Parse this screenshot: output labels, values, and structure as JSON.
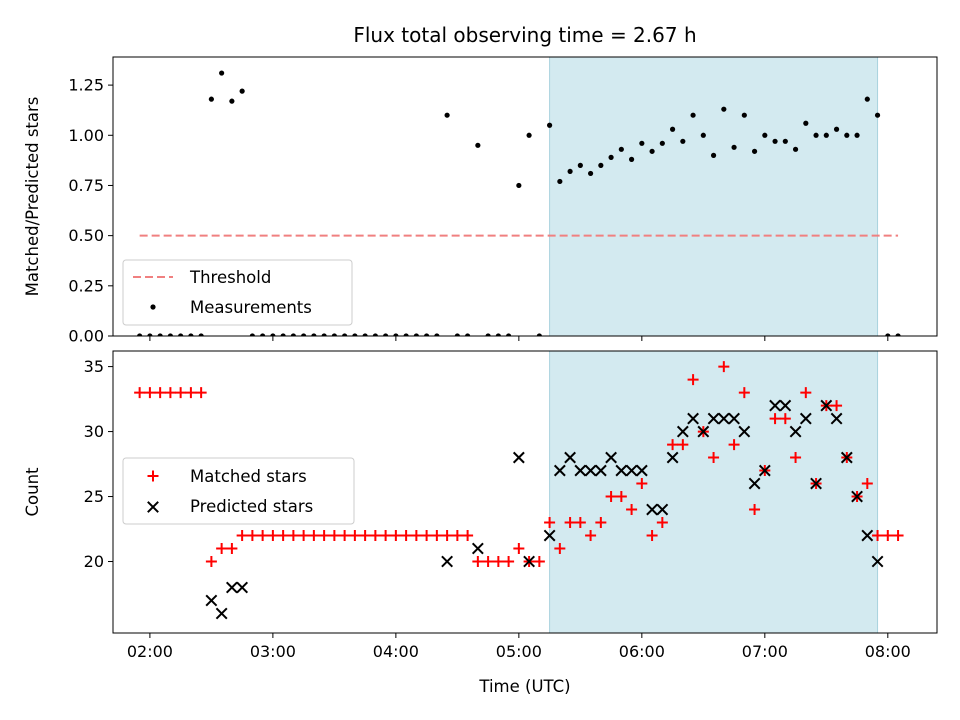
{
  "chart_data": [
    {
      "type": "scatter",
      "title": "Flux total observing time = 2.67 h",
      "ylabel": "Matched/Predicted stars",
      "xlabel": "",
      "xlim": [
        "01:42",
        "08:24"
      ],
      "ylim": [
        0,
        1.39
      ],
      "yticks": [
        0,
        0.25,
        0.5,
        0.75,
        1.0,
        1.25
      ],
      "ytick_labels": [
        "0.00",
        "0.25",
        "0.50",
        "0.75",
        "1.00",
        "1.25"
      ],
      "shaded_span": {
        "start": "05:15",
        "end": "07:55",
        "color": "#d3eaf0"
      },
      "threshold": {
        "name": "Threshold",
        "value": 0.5,
        "start": "01:55",
        "end": "08:05",
        "color": "#f08080"
      },
      "legend": {
        "position": "lower-left",
        "entries": [
          "Threshold",
          "Measurements"
        ]
      },
      "series": [
        {
          "name": "Measurements",
          "marker": "dot",
          "color": "#000000",
          "points": [
            [
              "01:55",
              0
            ],
            [
              "02:00",
              0
            ],
            [
              "02:05",
              0
            ],
            [
              "02:10",
              0
            ],
            [
              "02:15",
              0
            ],
            [
              "02:20",
              0
            ],
            [
              "02:25",
              0
            ],
            [
              "02:30",
              1.18
            ],
            [
              "02:35",
              1.31
            ],
            [
              "02:40",
              1.17
            ],
            [
              "02:45",
              1.22
            ],
            [
              "02:50",
              0
            ],
            [
              "02:55",
              0
            ],
            [
              "03:00",
              0
            ],
            [
              "03:05",
              0
            ],
            [
              "03:10",
              0
            ],
            [
              "03:15",
              0
            ],
            [
              "03:20",
              0
            ],
            [
              "03:25",
              0
            ],
            [
              "03:30",
              0
            ],
            [
              "03:35",
              0
            ],
            [
              "03:40",
              0
            ],
            [
              "03:45",
              0
            ],
            [
              "03:50",
              0
            ],
            [
              "03:55",
              0
            ],
            [
              "04:00",
              0
            ],
            [
              "04:05",
              0
            ],
            [
              "04:10",
              0
            ],
            [
              "04:15",
              0
            ],
            [
              "04:20",
              0
            ],
            [
              "04:25",
              1.1
            ],
            [
              "04:30",
              0
            ],
            [
              "04:35",
              0
            ],
            [
              "04:40",
              0.95
            ],
            [
              "04:45",
              0
            ],
            [
              "04:50",
              0
            ],
            [
              "04:55",
              0
            ],
            [
              "05:00",
              0.75
            ],
            [
              "05:05",
              1.0
            ],
            [
              "05:10",
              0
            ],
            [
              "05:15",
              1.05
            ],
            [
              "05:20",
              0.77
            ],
            [
              "05:25",
              0.82
            ],
            [
              "05:30",
              0.85
            ],
            [
              "05:35",
              0.81
            ],
            [
              "05:40",
              0.85
            ],
            [
              "05:45",
              0.89
            ],
            [
              "05:50",
              0.93
            ],
            [
              "05:55",
              0.88
            ],
            [
              "06:00",
              0.96
            ],
            [
              "06:05",
              0.92
            ],
            [
              "06:10",
              0.96
            ],
            [
              "06:15",
              1.03
            ],
            [
              "06:20",
              0.97
            ],
            [
              "06:25",
              1.1
            ],
            [
              "06:30",
              1.0
            ],
            [
              "06:35",
              0.9
            ],
            [
              "06:40",
              1.13
            ],
            [
              "06:45",
              0.94
            ],
            [
              "06:50",
              1.1
            ],
            [
              "06:55",
              0.92
            ],
            [
              "07:00",
              1.0
            ],
            [
              "07:05",
              0.97
            ],
            [
              "07:10",
              0.97
            ],
            [
              "07:15",
              0.93
            ],
            [
              "07:20",
              1.06
            ],
            [
              "07:25",
              1.0
            ],
            [
              "07:30",
              1.0
            ],
            [
              "07:35",
              1.03
            ],
            [
              "07:40",
              1.0
            ],
            [
              "07:45",
              1.0
            ],
            [
              "07:50",
              1.18
            ],
            [
              "07:55",
              1.1
            ],
            [
              "08:00",
              0
            ],
            [
              "08:05",
              0
            ]
          ]
        }
      ]
    },
    {
      "type": "scatter",
      "title": "",
      "ylabel": "Count",
      "xlabel": "Time (UTC)",
      "xlim": [
        "01:42",
        "08:24"
      ],
      "ylim": [
        14.5,
        36.2
      ],
      "yticks": [
        20,
        25,
        30,
        35
      ],
      "ytick_labels": [
        "20",
        "25",
        "30",
        "35"
      ],
      "xticks": [
        "02:00",
        "03:00",
        "04:00",
        "05:00",
        "06:00",
        "07:00",
        "08:00"
      ],
      "shaded_span": {
        "start": "05:15",
        "end": "07:55",
        "color": "#d3eaf0"
      },
      "legend": {
        "position": "center-left",
        "entries": [
          "Matched stars",
          "Predicted stars"
        ]
      },
      "series": [
        {
          "name": "Matched stars",
          "marker": "plus",
          "color": "#ff0000",
          "points": [
            [
              "01:55",
              33
            ],
            [
              "02:00",
              33
            ],
            [
              "02:05",
              33
            ],
            [
              "02:10",
              33
            ],
            [
              "02:15",
              33
            ],
            [
              "02:20",
              33
            ],
            [
              "02:25",
              33
            ],
            [
              "02:30",
              20
            ],
            [
              "02:35",
              21
            ],
            [
              "02:40",
              21
            ],
            [
              "02:45",
              22
            ],
            [
              "02:50",
              22
            ],
            [
              "02:55",
              22
            ],
            [
              "03:00",
              22
            ],
            [
              "03:05",
              22
            ],
            [
              "03:10",
              22
            ],
            [
              "03:15",
              22
            ],
            [
              "03:20",
              22
            ],
            [
              "03:25",
              22
            ],
            [
              "03:30",
              22
            ],
            [
              "03:35",
              22
            ],
            [
              "03:40",
              22
            ],
            [
              "03:45",
              22
            ],
            [
              "03:50",
              22
            ],
            [
              "03:55",
              22
            ],
            [
              "04:00",
              22
            ],
            [
              "04:05",
              22
            ],
            [
              "04:10",
              22
            ],
            [
              "04:15",
              22
            ],
            [
              "04:20",
              22
            ],
            [
              "04:25",
              22
            ],
            [
              "04:30",
              22
            ],
            [
              "04:35",
              22
            ],
            [
              "04:40",
              20
            ],
            [
              "04:45",
              20
            ],
            [
              "04:50",
              20
            ],
            [
              "04:55",
              20
            ],
            [
              "05:00",
              21
            ],
            [
              "05:05",
              20
            ],
            [
              "05:10",
              20
            ],
            [
              "05:15",
              23
            ],
            [
              "05:20",
              21
            ],
            [
              "05:25",
              23
            ],
            [
              "05:30",
              23
            ],
            [
              "05:35",
              22
            ],
            [
              "05:40",
              23
            ],
            [
              "05:45",
              25
            ],
            [
              "05:50",
              25
            ],
            [
              "05:55",
              24
            ],
            [
              "06:00",
              26
            ],
            [
              "06:05",
              22
            ],
            [
              "06:10",
              23
            ],
            [
              "06:15",
              29
            ],
            [
              "06:20",
              29
            ],
            [
              "06:25",
              34
            ],
            [
              "06:30",
              30
            ],
            [
              "06:35",
              28
            ],
            [
              "06:40",
              35
            ],
            [
              "06:45",
              29
            ],
            [
              "06:50",
              33
            ],
            [
              "06:55",
              24
            ],
            [
              "07:00",
              27
            ],
            [
              "07:05",
              31
            ],
            [
              "07:10",
              31
            ],
            [
              "07:15",
              28
            ],
            [
              "07:20",
              33
            ],
            [
              "07:25",
              26
            ],
            [
              "07:30",
              32
            ],
            [
              "07:35",
              32
            ],
            [
              "07:40",
              28
            ],
            [
              "07:45",
              25
            ],
            [
              "07:50",
              26
            ],
            [
              "07:55",
              22
            ],
            [
              "08:00",
              22
            ],
            [
              "08:05",
              22
            ]
          ]
        },
        {
          "name": "Predicted stars",
          "marker": "x",
          "color": "#000000",
          "points": [
            [
              "02:30",
              17
            ],
            [
              "02:35",
              16
            ],
            [
              "02:40",
              18
            ],
            [
              "02:45",
              18
            ],
            [
              "04:25",
              20
            ],
            [
              "04:40",
              21
            ],
            [
              "05:00",
              28
            ],
            [
              "05:05",
              20
            ],
            [
              "05:15",
              22
            ],
            [
              "05:20",
              27
            ],
            [
              "05:25",
              28
            ],
            [
              "05:30",
              27
            ],
            [
              "05:35",
              27
            ],
            [
              "05:40",
              27
            ],
            [
              "05:45",
              28
            ],
            [
              "05:50",
              27
            ],
            [
              "05:55",
              27
            ],
            [
              "06:00",
              27
            ],
            [
              "06:05",
              24
            ],
            [
              "06:10",
              24
            ],
            [
              "06:15",
              28
            ],
            [
              "06:20",
              30
            ],
            [
              "06:25",
              31
            ],
            [
              "06:30",
              30
            ],
            [
              "06:35",
              31
            ],
            [
              "06:40",
              31
            ],
            [
              "06:45",
              31
            ],
            [
              "06:50",
              30
            ],
            [
              "06:55",
              26
            ],
            [
              "07:00",
              27
            ],
            [
              "07:05",
              32
            ],
            [
              "07:10",
              32
            ],
            [
              "07:15",
              30
            ],
            [
              "07:20",
              31
            ],
            [
              "07:25",
              26
            ],
            [
              "07:30",
              32
            ],
            [
              "07:35",
              31
            ],
            [
              "07:40",
              28
            ],
            [
              "07:45",
              25
            ],
            [
              "07:50",
              22
            ],
            [
              "07:55",
              20
            ]
          ]
        }
      ]
    }
  ]
}
